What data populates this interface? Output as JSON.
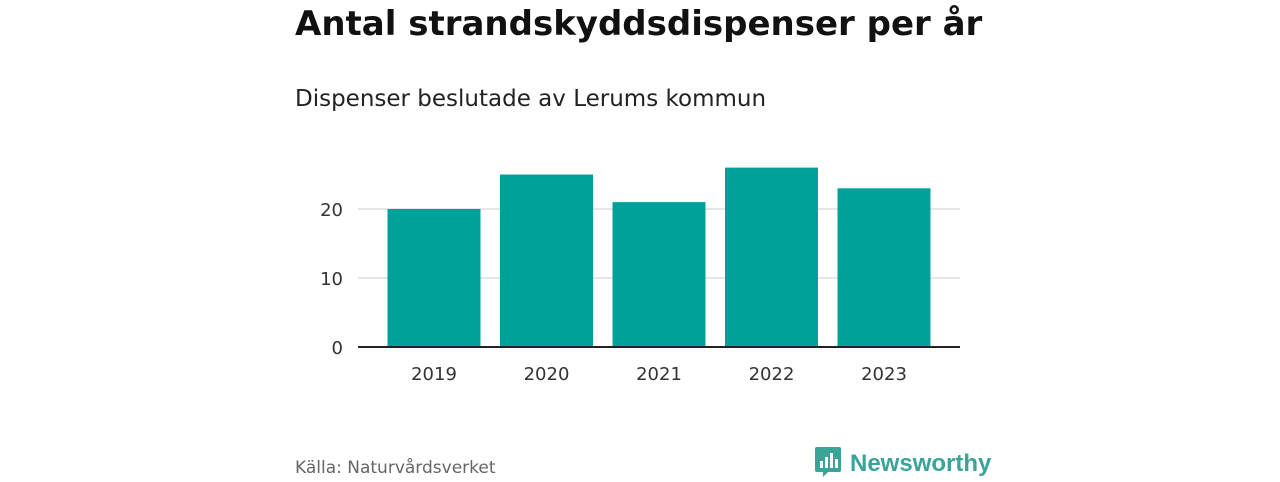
{
  "header": {
    "title": "Antal strandskyddsdispenser per år",
    "subtitle": "Dispenser beslutade av Lerums kommun"
  },
  "footer": {
    "source": "Källa: Naturvårdsverket",
    "brand": "Newsworthy",
    "brand_icon": "bar-chart-speech-bubble-icon"
  },
  "colors": {
    "bar": "#00a19a",
    "brand": "#3aa39a",
    "grid": "#dddddd",
    "axis": "#222222"
  },
  "chart_data": {
    "type": "bar",
    "categories": [
      "2019",
      "2020",
      "2021",
      "2022",
      "2023"
    ],
    "values": [
      20,
      25,
      21,
      26,
      23
    ],
    "title": "Antal strandskyddsdispenser per år",
    "subtitle": "Dispenser beslutade av Lerums kommun",
    "xlabel": "",
    "ylabel": "",
    "ylim": [
      0,
      27
    ],
    "yticks": [
      0,
      10,
      20
    ],
    "grid": true,
    "legend": "none"
  }
}
